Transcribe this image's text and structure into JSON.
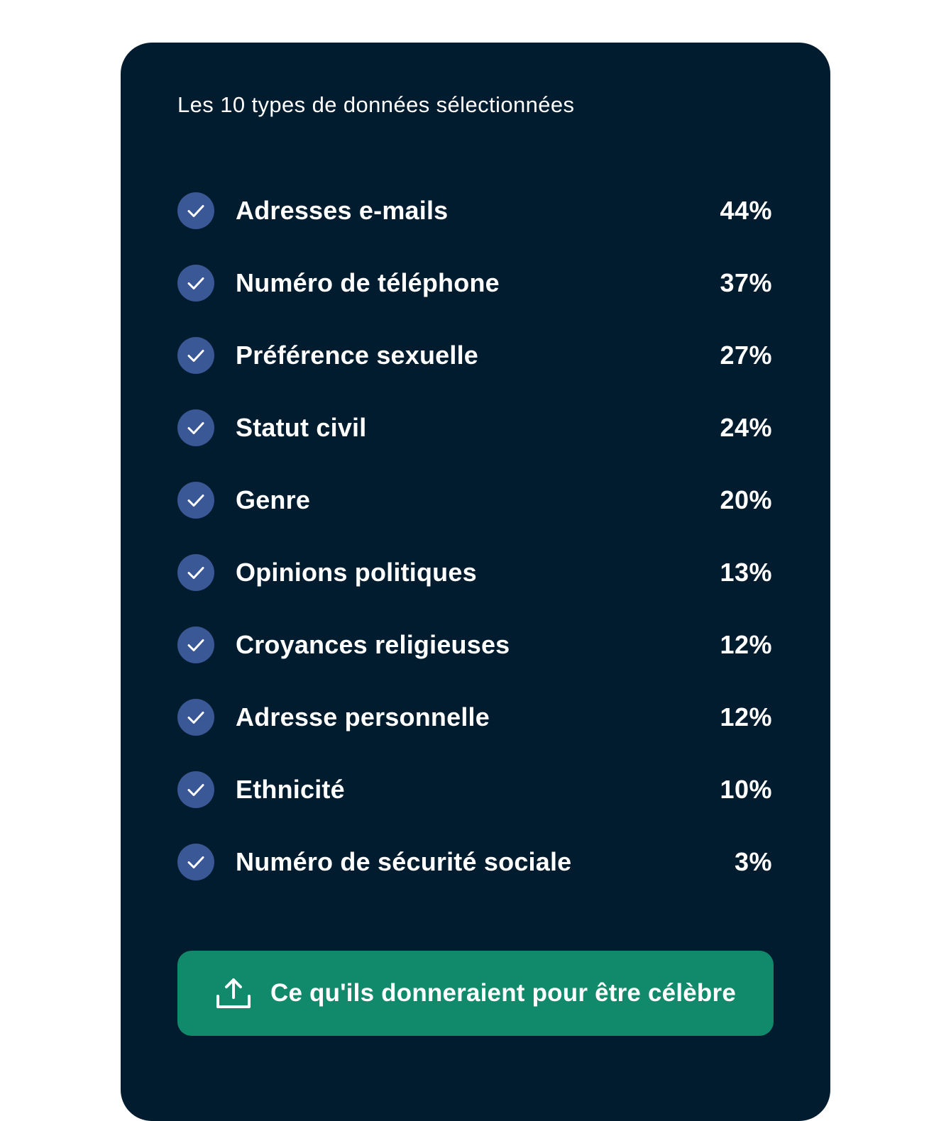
{
  "panel": {
    "title": "Les 10 types de données sélectionnées"
  },
  "items": [
    {
      "label": "Adresses e-mails",
      "percent": "44%",
      "checked": true
    },
    {
      "label": "Numéro de téléphone",
      "percent": "37%",
      "checked": true
    },
    {
      "label": "Préférence sexuelle",
      "percent": "27%",
      "checked": true
    },
    {
      "label": "Statut civil",
      "percent": "24%",
      "checked": true
    },
    {
      "label": "Genre",
      "percent": "20%",
      "checked": true
    },
    {
      "label": "Opinions politiques",
      "percent": "13%",
      "checked": true
    },
    {
      "label": "Croyances religieuses",
      "percent": "12%",
      "checked": true
    },
    {
      "label": "Adresse personnelle",
      "percent": "12%",
      "checked": true
    },
    {
      "label": "Ethnicité",
      "percent": "10%",
      "checked": true
    },
    {
      "label": "Numéro de sécurité sociale",
      "percent": "3%",
      "checked": true
    }
  ],
  "action": {
    "label": "Ce qu'ils donneraient pour être célèbre",
    "icon": "share-upload-icon"
  },
  "colors": {
    "page_background": "#ffffff",
    "card_background": "#011c2e",
    "check_circle": "#3a5796",
    "button_background": "#118a6b",
    "text": "#ffffff"
  }
}
